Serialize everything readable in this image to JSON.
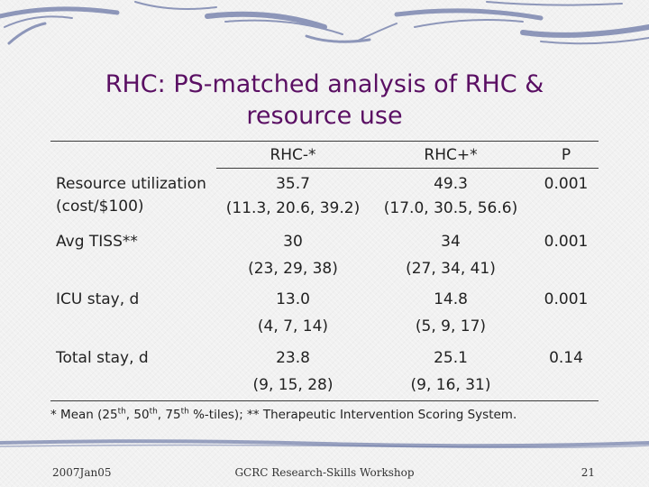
{
  "title_line1": "RHC: PS-matched analysis of RHC &",
  "title_line2": "resource use",
  "table": {
    "headers": [
      "",
      "RHC-*",
      "RHC+*",
      "P"
    ],
    "rows": [
      {
        "label_line1": "Resource utilization",
        "label_line2": "(cost/$100)",
        "rhc_minus_mean": "35.7",
        "rhc_minus_pct": "(11.3, 20.6, 39.2)",
        "rhc_plus_mean": "49.3",
        "rhc_plus_pct": "(17.0, 30.5, 56.6)",
        "p": "0.001"
      },
      {
        "label_line1": "Avg TISS**",
        "label_line2": "",
        "rhc_minus_mean": "30",
        "rhc_minus_pct": "(23, 29, 38)",
        "rhc_plus_mean": "34",
        "rhc_plus_pct": "(27, 34, 41)",
        "p": "0.001"
      },
      {
        "label_line1": "ICU stay, d",
        "label_line2": "",
        "rhc_minus_mean": "13.0",
        "rhc_minus_pct": "(4, 7, 14)",
        "rhc_plus_mean": "14.8",
        "rhc_plus_pct": "(5, 9, 17)",
        "p": "0.001"
      },
      {
        "label_line1": "Total stay, d",
        "label_line2": "",
        "rhc_minus_mean": "23.8",
        "rhc_minus_pct": "(9, 15, 28)",
        "rhc_plus_mean": "25.1",
        "rhc_plus_pct": "(9, 16, 31)",
        "p": "0.14"
      }
    ]
  },
  "footnote": {
    "part1": "*  Mean (25",
    "sup1": "th",
    "part2": ", 50",
    "sup2": "th",
    "part3": ", 75",
    "sup3": "th",
    "part4": " %-tiles); ** Therapeutic Intervention Scoring System."
  },
  "footer": {
    "date": "2007Jan05",
    "workshop": "GCRC Research-Skills Workshop",
    "page": "21"
  },
  "colors": {
    "title": "#5a0f63",
    "deco": "#3c4d8c"
  }
}
